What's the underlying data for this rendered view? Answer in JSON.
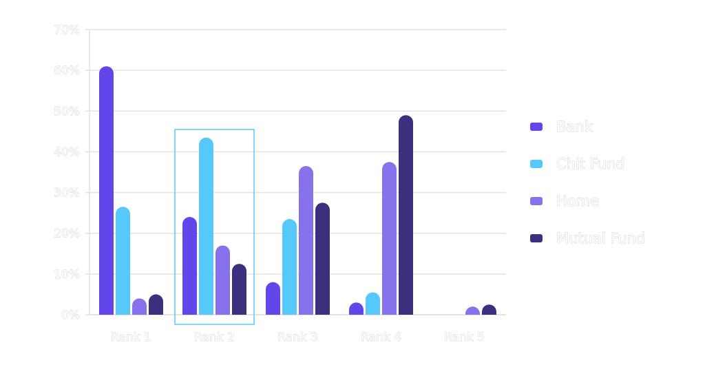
{
  "chart_data": {
    "type": "bar",
    "categories": [
      "Rank 1",
      "Rank 2",
      "Rank 3",
      "Rank 4",
      "Rank 5"
    ],
    "series": [
      {
        "name": "Bank",
        "color": "#6246ea",
        "values": [
          61,
          24,
          8,
          3,
          0
        ]
      },
      {
        "name": "Chit Fund",
        "color": "#56c8fa",
        "values": [
          26.5,
          43.5,
          23.5,
          5.5,
          0
        ]
      },
      {
        "name": "Home",
        "color": "#8772ec",
        "values": [
          4,
          17,
          36.5,
          37.5,
          2
        ]
      },
      {
        "name": "Mutual Fund",
        "color": "#3c2f7d",
        "values": [
          5,
          12.5,
          27.5,
          49,
          2.5
        ]
      }
    ],
    "y_ticks": [
      "0%",
      "10%",
      "20%",
      "30%",
      "40%",
      "50%",
      "60%",
      "70%"
    ],
    "ylim": [
      0,
      70
    ],
    "grid": true,
    "legend_position": "right",
    "highlighted_category": "Rank 2",
    "highlight_color": "#56c8fa"
  }
}
